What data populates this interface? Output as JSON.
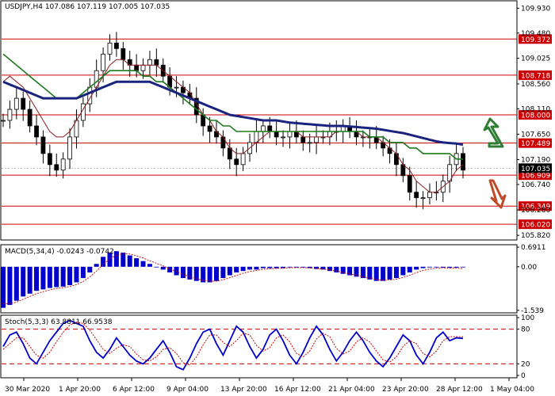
{
  "colors": {
    "price": "#000000",
    "sma_fast": "#8b1a1a",
    "sma_mid": "#1e7a1e",
    "sma_slow": "#1a237e",
    "level": "#cc0000",
    "level_tag_bg": "#cc0000",
    "current_tag_bg": "#000000",
    "macd_hist": "#0000cc",
    "macd_signal": "#cc0000",
    "stoch_main": "#0000cc",
    "stoch_signal": "#cc0000",
    "arrow_up": "#2e7d32",
    "arrow_down": "#bf4a2a"
  },
  "chart_data": [
    {
      "type": "line",
      "title": "USDJPY,H4  107.086 107.119 107.005 107.035",
      "x_labels": [
        "30 Mar 2020",
        "1 Apr 20:00",
        "6 Apr 12:00",
        "9 Apr 04:00",
        "13 Apr 20:00",
        "16 Apr 12:00",
        "21 Apr 04:00",
        "23 Apr 20:00",
        "28 Apr 12:00",
        "1 May 04:00"
      ],
      "y_ticks": [
        "109.930",
        "109.480",
        "109.025",
        "108.560",
        "108.110",
        "107.650",
        "107.190",
        "106.740",
        "106.280",
        "105.820"
      ],
      "ylim": [
        105.75,
        110.05
      ],
      "levels": [
        "109.372",
        "108.718",
        "108.000",
        "107.489",
        "106.909",
        "106.349",
        "106.020"
      ],
      "current_price": "107.035",
      "close": [
        107.9,
        108.1,
        108.3,
        108.1,
        107.8,
        107.6,
        107.3,
        107.1,
        107.0,
        107.2,
        107.6,
        107.9,
        108.2,
        108.5,
        108.8,
        109.1,
        109.3,
        109.2,
        109.0,
        108.9,
        108.8,
        108.9,
        109.0,
        108.9,
        108.7,
        108.5,
        108.5,
        108.4,
        108.3,
        108.0,
        107.8,
        107.7,
        107.6,
        107.4,
        107.2,
        107.1,
        107.3,
        107.5,
        107.7,
        107.8,
        107.7,
        107.6,
        107.6,
        107.7,
        107.6,
        107.5,
        107.5,
        107.6,
        107.6,
        107.7,
        107.7,
        107.8,
        107.7,
        107.6,
        107.6,
        107.6,
        107.5,
        107.4,
        107.3,
        107.1,
        106.9,
        106.6,
        106.5,
        106.5,
        106.6,
        106.6,
        106.8,
        107.1,
        107.3,
        107.0
      ],
      "series": [
        {
          "name": "",
          "values": [
            108.6,
            108.7,
            108.6,
            108.5,
            108.3,
            108.1,
            107.9,
            107.7,
            107.6,
            107.6,
            107.7,
            107.9,
            108.1,
            108.3,
            108.5,
            108.7,
            108.9,
            109.0,
            109.0,
            108.9,
            108.9,
            108.9,
            108.9,
            108.9,
            108.8,
            108.7,
            108.6,
            108.5,
            108.4,
            108.2,
            108.0,
            107.9,
            107.7,
            107.6,
            107.4,
            107.3,
            107.3,
            107.4,
            107.5,
            107.6,
            107.7,
            107.7,
            107.7,
            107.7,
            107.7,
            107.6,
            107.6,
            107.6,
            107.6,
            107.6,
            107.7,
            107.7,
            107.7,
            107.7,
            107.6,
            107.6,
            107.6,
            107.5,
            107.4,
            107.3,
            107.1,
            107.0,
            106.8,
            106.7,
            106.6,
            106.6,
            106.7,
            106.8,
            107.0,
            107.1
          ]
        },
        {
          "name": "",
          "values": [
            109.1,
            109.0,
            108.9,
            108.8,
            108.7,
            108.6,
            108.5,
            108.4,
            108.3,
            108.3,
            108.3,
            108.3,
            108.4,
            108.5,
            108.6,
            108.7,
            108.8,
            108.8,
            108.8,
            108.8,
            108.8,
            108.7,
            108.7,
            108.6,
            108.6,
            108.5,
            108.4,
            108.3,
            108.2,
            108.1,
            108.0,
            107.9,
            107.9,
            107.8,
            107.8,
            107.7,
            107.7,
            107.7,
            107.7,
            107.7,
            107.7,
            107.7,
            107.7,
            107.7,
            107.7,
            107.7,
            107.7,
            107.7,
            107.7,
            107.7,
            107.7,
            107.7,
            107.7,
            107.7,
            107.7,
            107.6,
            107.6,
            107.6,
            107.5,
            107.5,
            107.5,
            107.4,
            107.4,
            107.3,
            107.3,
            107.3,
            107.3,
            107.3,
            107.2,
            107.2
          ]
        },
        {
          "name": "",
          "values": [
            108.6,
            108.55,
            108.5,
            108.45,
            108.4,
            108.35,
            108.3,
            108.3,
            108.3,
            108.3,
            108.3,
            108.3,
            108.35,
            108.4,
            108.45,
            108.5,
            108.55,
            108.6,
            108.6,
            108.6,
            108.6,
            108.6,
            108.6,
            108.55,
            108.5,
            108.45,
            108.4,
            108.35,
            108.3,
            108.25,
            108.2,
            108.15,
            108.1,
            108.05,
            108.0,
            107.98,
            107.96,
            107.94,
            107.92,
            107.9,
            107.9,
            107.9,
            107.88,
            107.86,
            107.85,
            107.84,
            107.83,
            107.82,
            107.81,
            107.8,
            107.8,
            107.8,
            107.79,
            107.78,
            107.77,
            107.76,
            107.75,
            107.73,
            107.71,
            107.69,
            107.67,
            107.64,
            107.61,
            107.58,
            107.55,
            107.52,
            107.5,
            107.49,
            107.48,
            107.46
          ]
        }
      ]
    },
    {
      "type": "bar",
      "title": "MACD(5,34,4) -0.0243 -0.0742",
      "y_ticks": [
        "0.6911",
        "0.00",
        "-1.539"
      ],
      "ylim": [
        -1.6,
        0.75
      ],
      "values": [
        -1.45,
        -1.35,
        -1.2,
        -1.05,
        -0.95,
        -0.85,
        -0.8,
        -0.75,
        -0.72,
        -0.7,
        -0.65,
        -0.55,
        -0.4,
        -0.2,
        0.1,
        0.35,
        0.5,
        0.55,
        0.5,
        0.4,
        0.3,
        0.2,
        0.1,
        0.0,
        -0.1,
        -0.2,
        -0.3,
        -0.4,
        -0.45,
        -0.5,
        -0.55,
        -0.55,
        -0.5,
        -0.4,
        -0.3,
        -0.2,
        -0.15,
        -0.1,
        -0.1,
        -0.05,
        -0.05,
        -0.05,
        -0.05,
        -0.02,
        0.0,
        -0.02,
        -0.05,
        -0.08,
        -0.1,
        -0.15,
        -0.2,
        -0.25,
        -0.3,
        -0.35,
        -0.4,
        -0.45,
        -0.5,
        -0.5,
        -0.45,
        -0.4,
        -0.3,
        -0.2,
        -0.1,
        -0.05,
        -0.02,
        -0.02,
        -0.03,
        -0.03,
        -0.03,
        -0.02
      ],
      "signal": [
        -1.3,
        -1.3,
        -1.25,
        -1.15,
        -1.05,
        -0.95,
        -0.88,
        -0.82,
        -0.77,
        -0.74,
        -0.7,
        -0.63,
        -0.52,
        -0.36,
        -0.15,
        0.08,
        0.28,
        0.41,
        0.47,
        0.45,
        0.39,
        0.31,
        0.21,
        0.12,
        0.03,
        -0.07,
        -0.17,
        -0.27,
        -0.35,
        -0.42,
        -0.48,
        -0.51,
        -0.51,
        -0.46,
        -0.39,
        -0.31,
        -0.23,
        -0.17,
        -0.13,
        -0.09,
        -0.07,
        -0.06,
        -0.05,
        -0.04,
        -0.03,
        -0.03,
        -0.04,
        -0.06,
        -0.08,
        -0.11,
        -0.15,
        -0.2,
        -0.25,
        -0.3,
        -0.35,
        -0.4,
        -0.45,
        -0.48,
        -0.47,
        -0.44,
        -0.38,
        -0.3,
        -0.21,
        -0.13,
        -0.08,
        -0.05,
        -0.04,
        -0.05,
        -0.05,
        -0.07
      ]
    },
    {
      "type": "line",
      "title": "Stoch(5,3,3) 63.8811 66.9538",
      "y_ticks": [
        "100",
        "80",
        "20",
        "0"
      ],
      "ylim": [
        0,
        100
      ],
      "levels": [
        80,
        20
      ],
      "series": [
        {
          "name": "",
          "values": [
            50,
            70,
            75,
            55,
            30,
            20,
            40,
            60,
            75,
            90,
            95,
            90,
            85,
            60,
            40,
            30,
            45,
            65,
            50,
            35,
            25,
            20,
            30,
            45,
            60,
            40,
            15,
            10,
            30,
            55,
            75,
            80,
            55,
            35,
            60,
            85,
            75,
            50,
            30,
            45,
            70,
            80,
            60,
            35,
            20,
            40,
            65,
            85,
            70,
            45,
            25,
            40,
            60,
            75,
            60,
            40,
            25,
            15,
            30,
            50,
            70,
            60,
            35,
            20,
            40,
            65,
            75,
            60,
            65,
            64
          ]
        },
        {
          "name": "",
          "values": [
            45,
            55,
            65,
            65,
            50,
            35,
            30,
            40,
            58,
            75,
            87,
            92,
            90,
            78,
            62,
            45,
            38,
            47,
            53,
            50,
            37,
            27,
            25,
            32,
            45,
            48,
            38,
            22,
            18,
            32,
            53,
            70,
            70,
            57,
            50,
            60,
            73,
            70,
            52,
            42,
            48,
            65,
            70,
            58,
            38,
            32,
            42,
            63,
            73,
            67,
            47,
            37,
            42,
            58,
            65,
            58,
            42,
            27,
            23,
            32,
            50,
            60,
            55,
            38,
            32,
            42,
            60,
            67,
            67,
            67
          ]
        }
      ]
    }
  ]
}
